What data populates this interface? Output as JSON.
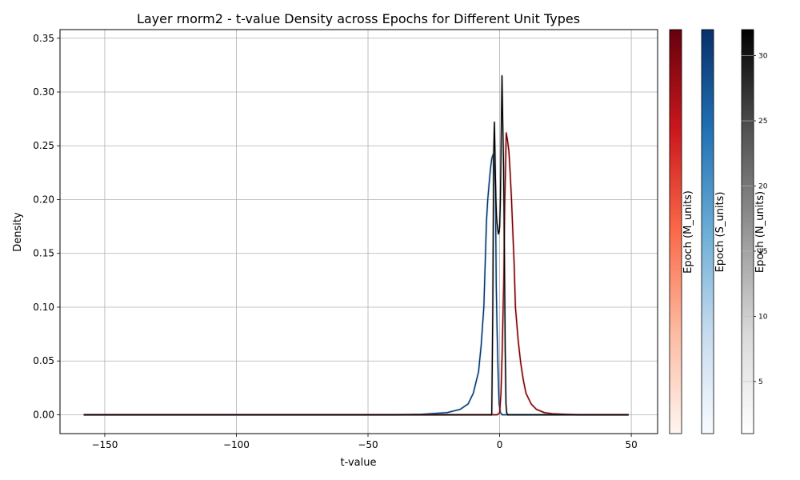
{
  "chart_data": {
    "type": "line",
    "title": "Layer rnorm2 - t-value Density across Epochs for Different Unit Types",
    "xlabel": "t-value",
    "ylabel": "Density",
    "xlim": [
      -167,
      60
    ],
    "ylim": [
      -0.0175,
      0.358
    ],
    "xticks": [
      -150,
      -100,
      -50,
      0,
      50
    ],
    "xtick_labels": [
      "−150",
      "−100",
      "−50",
      "0",
      "50"
    ],
    "yticks": [
      0.0,
      0.05,
      0.1,
      0.15,
      0.2,
      0.25,
      0.3,
      0.35
    ],
    "ytick_labels": [
      "0.00",
      "0.05",
      "0.10",
      "0.15",
      "0.20",
      "0.25",
      "0.30",
      "0.35"
    ],
    "grid": true,
    "series": [
      {
        "name": "S_units",
        "color": "#08306b",
        "x": [
          -158,
          -40,
          -30,
          -20,
          -15,
          -12,
          -10,
          -8,
          -7,
          -6,
          -5,
          -4.5,
          -4,
          -3.5,
          -3,
          -2.5,
          -2,
          -1.6,
          -1.3,
          -1.0,
          -0.6,
          -0.2,
          0.2,
          0.6,
          1,
          2,
          5,
          49
        ],
        "y": [
          0,
          0,
          0.0005,
          0.002,
          0.005,
          0.01,
          0.02,
          0.04,
          0.065,
          0.1,
          0.18,
          0.2,
          0.215,
          0.228,
          0.238,
          0.242,
          0.23,
          0.21,
          0.12,
          0.08,
          0.04,
          0.01,
          0.003,
          0.001,
          0,
          0,
          0,
          0
        ]
      },
      {
        "name": "M_units",
        "color": "#67000d",
        "x": [
          -158,
          -5,
          -1,
          0,
          0.5,
          1,
          1.5,
          2,
          2.5,
          3,
          3.5,
          4,
          4.5,
          5,
          5.5,
          6,
          7,
          8,
          9,
          10,
          12,
          14,
          17,
          20,
          25,
          30,
          40,
          49
        ],
        "y": [
          0,
          0,
          0,
          0.002,
          0.02,
          0.06,
          0.12,
          0.2,
          0.262,
          0.255,
          0.245,
          0.225,
          0.2,
          0.17,
          0.14,
          0.1,
          0.07,
          0.048,
          0.032,
          0.02,
          0.01,
          0.005,
          0.002,
          0.001,
          0.0005,
          0,
          0,
          0
        ]
      },
      {
        "name": "N_units",
        "color": "#000000",
        "x": [
          -158,
          -3,
          -2.6,
          -2.3,
          -2.0,
          -1.8,
          -1.6,
          -1.4,
          -1.2,
          -1.0,
          -0.8,
          -0.6,
          -0.4,
          -0.2,
          0.0,
          0.3,
          0.6,
          0.9,
          1.2,
          1.5,
          1.8,
          2.1,
          2.4,
          2.7,
          3.0,
          3.3,
          49
        ],
        "y": [
          0,
          0,
          0.1,
          0.24,
          0.272,
          0.25,
          0.22,
          0.2,
          0.185,
          0.178,
          0.175,
          0.17,
          0.168,
          0.17,
          0.175,
          0.2,
          0.26,
          0.315,
          0.27,
          0.23,
          0.15,
          0.06,
          0.01,
          0.002,
          0,
          0,
          0
        ]
      }
    ],
    "colorbars": [
      {
        "label": "Epoch (M_units)",
        "colormap": "Reds",
        "colors": [
          "#fff5f0",
          "#fcbba1",
          "#fb6a4a",
          "#cb181d",
          "#67000d"
        ]
      },
      {
        "label": "Epoch (S_units)",
        "colormap": "Blues",
        "colors": [
          "#f7fbff",
          "#c6dbef",
          "#6baed6",
          "#2171b5",
          "#08306b"
        ]
      },
      {
        "label": "Epoch (N_units)",
        "colormap": "Greys",
        "colors": [
          "#ffffff",
          "#d9d9d9",
          "#969696",
          "#525252",
          "#000000"
        ],
        "ticks": [
          5,
          10,
          15,
          20,
          25,
          30
        ],
        "range": [
          1,
          32
        ]
      }
    ]
  }
}
